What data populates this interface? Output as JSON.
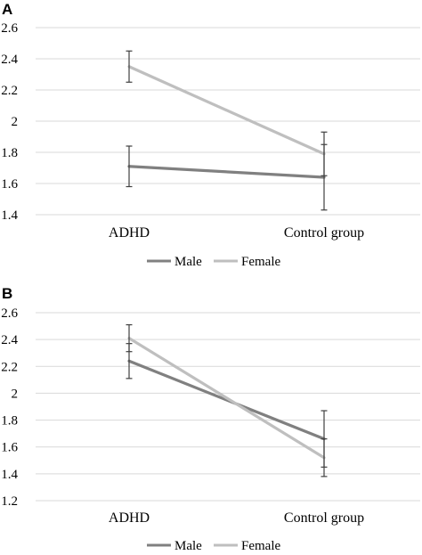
{
  "chart_data": [
    {
      "panel": "A",
      "type": "line",
      "categories": [
        "ADHD",
        "Control group"
      ],
      "ylim": [
        1.4,
        2.6
      ],
      "yticks": [
        "1.4",
        "1.6",
        "1.8",
        "2",
        "2.2",
        "2.4",
        "2.6"
      ],
      "grid": true,
      "legend_position": "bottom",
      "series": [
        {
          "name": "Male",
          "color": "#808080",
          "values": [
            1.71,
            1.64
          ],
          "errors": [
            0.13,
            0.21
          ]
        },
        {
          "name": "Female",
          "color": "#bfbfbf",
          "values": [
            2.35,
            1.79
          ],
          "errors": [
            0.1,
            0.14
          ]
        }
      ]
    },
    {
      "panel": "B",
      "type": "line",
      "categories": [
        "ADHD",
        "Control group"
      ],
      "ylim": [
        1.2,
        2.6
      ],
      "yticks": [
        "1.2",
        "1.4",
        "1.6",
        "1.8",
        "2",
        "2.2",
        "2.4",
        "2.6"
      ],
      "grid": true,
      "legend_position": "bottom",
      "series": [
        {
          "name": "Male",
          "color": "#808080",
          "values": [
            2.24,
            1.66
          ],
          "errors": [
            0.13,
            0.21
          ]
        },
        {
          "name": "Female",
          "color": "#bfbfbf",
          "values": [
            2.41,
            1.52
          ],
          "errors": [
            0.1,
            0.14
          ]
        }
      ]
    }
  ]
}
